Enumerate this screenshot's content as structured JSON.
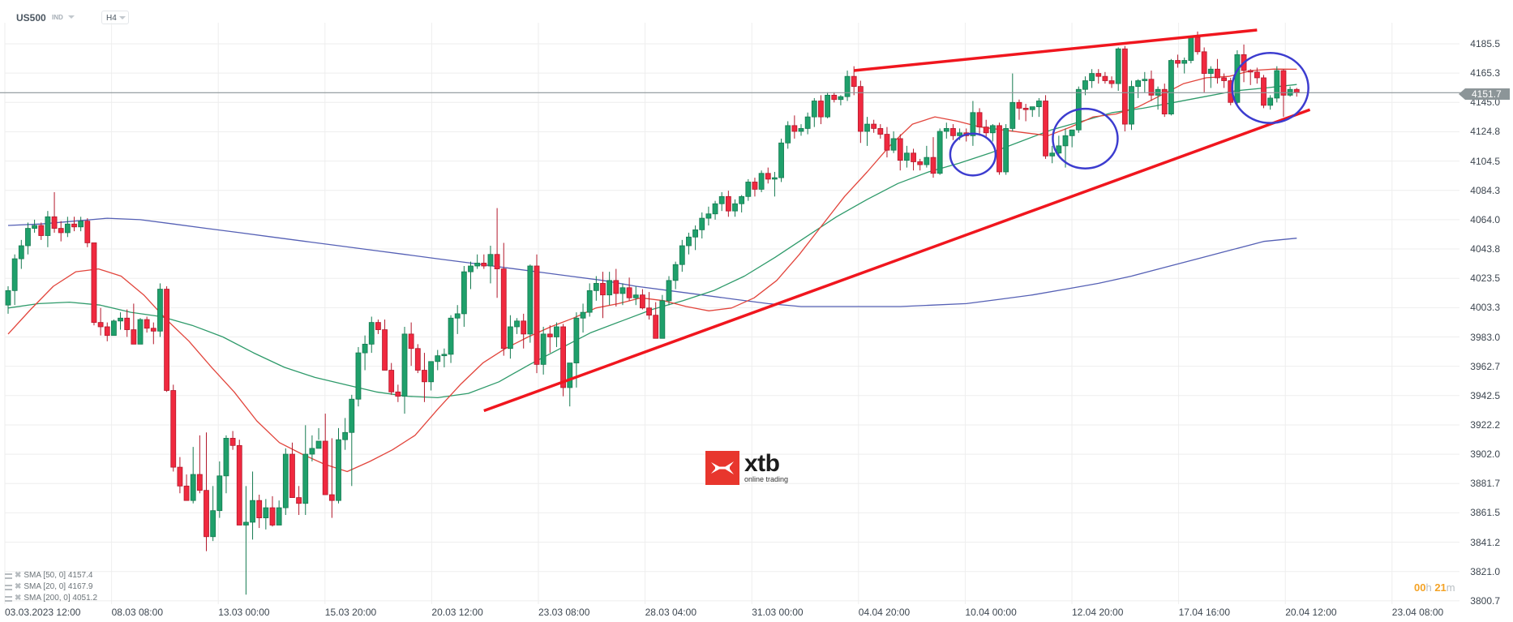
{
  "header": {
    "symbol": "US500",
    "symbol_type": "IND",
    "timeframe": "H4"
  },
  "price_axis": {
    "labels": [
      "4185.5",
      "4165.3",
      "4145.0",
      "4124.8",
      "4104.5",
      "4084.3",
      "4064.0",
      "4043.8",
      "4023.5",
      "4003.3",
      "3983.0",
      "3962.7",
      "3942.5",
      "3922.2",
      "3902.0",
      "3881.7",
      "3861.5",
      "3841.2",
      "3821.0",
      "3800.7"
    ],
    "current_price": "4151.7"
  },
  "time_axis": {
    "labels": [
      "03.03.2023  12:00",
      "08.03  08:00",
      "13.03  00:00",
      "15.03  20:00",
      "20.03  12:00",
      "23.03  08:00",
      "28.03  04:00",
      "31.03  00:00",
      "04.04  20:00",
      "10.04  00:00",
      "12.04  20:00",
      "17.04  16:00",
      "20.04  12:00",
      "23.04  08:00"
    ]
  },
  "legend": [
    {
      "label": "SMA [50,  0] 4157.4"
    },
    {
      "label": "SMA [20,  0] 4167.9"
    },
    {
      "label": "SMA [200,  0] 4051.2"
    }
  ],
  "countdown": {
    "hours": "00",
    "h_unit": "h",
    "minutes": "21",
    "m_unit": "m"
  },
  "logo": {
    "name": "xtb",
    "tagline": "online trading"
  },
  "colors": {
    "bull": "#1fa06b",
    "bear": "#f0293f",
    "sma20": "#e2453c",
    "sma50": "#2e9a6a",
    "sma200": "#5560b5",
    "trendline": "#f0161e",
    "circle": "#3c3ccf",
    "grid": "#eeeeee",
    "current_price_line": "#8c9598"
  },
  "chart_data": {
    "type": "candlestick",
    "title": "US500 H4",
    "xlabel": "",
    "ylabel": "",
    "ylim": [
      3800.7,
      4195
    ],
    "grid": true,
    "legend_position": "bottom-left",
    "current_price": 4151.7,
    "candles_ohlc": [
      [
        4005,
        4018,
        3999,
        4015
      ],
      [
        4015,
        4040,
        4005,
        4037
      ],
      [
        4037,
        4050,
        4030,
        4046
      ],
      [
        4046,
        4062,
        4040,
        4058
      ],
      [
        4058,
        4064,
        4055,
        4060
      ],
      [
        4060,
        4062,
        4050,
        4053
      ],
      [
        4053,
        4070,
        4045,
        4066
      ],
      [
        4066,
        4083,
        4055,
        4058
      ],
      [
        4058,
        4063,
        4049,
        4055
      ],
      [
        4055,
        4066,
        4052,
        4061
      ],
      [
        4061,
        4066,
        4056,
        4059
      ],
      [
        4059,
        4066,
        4056,
        4063
      ],
      [
        4063,
        4065,
        4045,
        4048
      ],
      [
        4048,
        4048,
        3991,
        3993
      ],
      [
        3993,
        4003,
        3984,
        3990
      ],
      [
        3990,
        3993,
        3980,
        3984
      ],
      [
        3984,
        3995,
        3984,
        3994
      ],
      [
        3994,
        4000,
        3988,
        3996
      ],
      [
        3996,
        4002,
        3983,
        3988
      ],
      [
        3988,
        4006,
        3980,
        3978
      ],
      [
        3978,
        3996,
        3980,
        3995
      ],
      [
        3995,
        3997,
        3986,
        3989
      ],
      [
        3989,
        3993,
        3978,
        3987
      ],
      [
        3987,
        4020,
        3983,
        4016
      ],
      [
        4016,
        4018,
        3945,
        3946
      ],
      [
        3946,
        3950,
        3890,
        3893
      ],
      [
        3893,
        3900,
        3875,
        3880
      ],
      [
        3880,
        3888,
        3870,
        3870
      ],
      [
        3870,
        3907,
        3868,
        3888
      ],
      [
        3888,
        3915,
        3875,
        3877
      ],
      [
        3877,
        3917,
        3835,
        3845
      ],
      [
        3845,
        3880,
        3842,
        3863
      ],
      [
        3863,
        3897,
        3858,
        3887
      ],
      [
        3887,
        3915,
        3875,
        3913
      ],
      [
        3913,
        3918,
        3905,
        3908
      ],
      [
        3908,
        3912,
        3854,
        3853
      ],
      [
        3853,
        3880,
        3805,
        3855
      ],
      [
        3855,
        3890,
        3843,
        3870
      ],
      [
        3870,
        3874,
        3851,
        3858
      ],
      [
        3858,
        3871,
        3850,
        3865
      ],
      [
        3865,
        3873,
        3852,
        3853
      ],
      [
        3853,
        3870,
        3853,
        3865
      ],
      [
        3865,
        3906,
        3860,
        3902
      ],
      [
        3902,
        3910,
        3882,
        3872
      ],
      [
        3872,
        3880,
        3860,
        3868
      ],
      [
        3868,
        3922,
        3860,
        3902
      ],
      [
        3902,
        3915,
        3897,
        3906
      ],
      [
        3906,
        3920,
        3912,
        3911
      ],
      [
        3911,
        3930,
        3880,
        3874
      ],
      [
        3874,
        3913,
        3858,
        3870
      ],
      [
        3870,
        3920,
        3868,
        3912
      ],
      [
        3912,
        3927,
        3905,
        3917
      ],
      [
        3917,
        3943,
        3880,
        3940
      ],
      [
        3940,
        3976,
        3935,
        3972
      ],
      [
        3972,
        3984,
        3960,
        3978
      ],
      [
        3978,
        3997,
        3972,
        3993
      ],
      [
        3993,
        3995,
        3985,
        3988
      ],
      [
        3988,
        3995,
        3960,
        3960
      ],
      [
        3960,
        3965,
        3943,
        3945
      ],
      [
        3945,
        3950,
        3938,
        3942
      ],
      [
        3942,
        3990,
        3930,
        3985
      ],
      [
        3985,
        3993,
        3963,
        3975
      ],
      [
        3975,
        3978,
        3958,
        3960
      ],
      [
        3960,
        3972,
        3938,
        3952
      ],
      [
        3952,
        3966,
        3946,
        3966
      ],
      [
        3966,
        3974,
        3960,
        3970
      ],
      [
        3970,
        3975,
        3962,
        3971
      ],
      [
        3971,
        3998,
        3965,
        3996
      ],
      [
        3996,
        4005,
        3985,
        3999
      ],
      [
        3999,
        4032,
        3990,
        4028
      ],
      [
        4028,
        4035,
        4016,
        4032
      ],
      [
        4032,
        4040,
        4030,
        4034
      ],
      [
        4034,
        4040,
        4030,
        4032
      ],
      [
        4032,
        4046,
        4020,
        4040
      ],
      [
        4040,
        4072,
        4010,
        4030
      ],
      [
        4030,
        4048,
        3970,
        3975
      ],
      [
        3975,
        3998,
        3968,
        3990
      ],
      [
        3990,
        3996,
        3985,
        3994
      ],
      [
        3994,
        3999,
        3975,
        3985
      ],
      [
        3985,
        4033,
        3979,
        4032
      ],
      [
        4032,
        4040,
        3958,
        3964
      ],
      [
        3964,
        3990,
        3957,
        3985
      ],
      [
        3985,
        3991,
        3972,
        3983
      ],
      [
        3983,
        3993,
        3976,
        3990
      ],
      [
        3990,
        3992,
        3942,
        3948
      ],
      [
        3948,
        3955,
        3935,
        3965
      ],
      [
        3965,
        4000,
        3948,
        3996
      ],
      [
        3996,
        4006,
        3986,
        4000
      ],
      [
        4000,
        4020,
        3997,
        4015
      ],
      [
        4015,
        4025,
        4008,
        4020
      ],
      [
        4020,
        4028,
        3996,
        4012
      ],
      [
        4012,
        4028,
        4005,
        4022
      ],
      [
        4022,
        4030,
        4004,
        4013
      ],
      [
        4013,
        4020,
        4005,
        4017
      ],
      [
        4017,
        4024,
        4008,
        4010
      ],
      [
        4010,
        4018,
        4005,
        4012
      ],
      [
        4012,
        4016,
        4002,
        4003
      ],
      [
        4003,
        4014,
        3995,
        3998
      ],
      [
        3998,
        4007,
        3990,
        3982
      ],
      [
        3982,
        4012,
        3982,
        4008
      ],
      [
        4008,
        4025,
        4005,
        4022
      ],
      [
        4022,
        4035,
        4016,
        4033
      ],
      [
        4033,
        4050,
        4028,
        4046
      ],
      [
        4046,
        4055,
        4040,
        4052
      ],
      [
        4052,
        4060,
        4043,
        4057
      ],
      [
        4057,
        4069,
        4051,
        4065
      ],
      [
        4065,
        4073,
        4060,
        4068
      ],
      [
        4068,
        4077,
        4064,
        4075
      ],
      [
        4075,
        4083,
        4070,
        4080
      ],
      [
        4080,
        4084,
        4066,
        4070
      ],
      [
        4070,
        4078,
        4066,
        4075
      ],
      [
        4075,
        4081,
        4069,
        4080
      ],
      [
        4080,
        4092,
        4077,
        4090
      ],
      [
        4090,
        4093,
        4080,
        4085
      ],
      [
        4085,
        4098,
        4083,
        4096
      ],
      [
        4096,
        4100,
        4089,
        4092
      ],
      [
        4092,
        4097,
        4080,
        4093
      ],
      [
        4093,
        4120,
        4090,
        4117
      ],
      [
        4117,
        4132,
        4113,
        4129
      ],
      [
        4129,
        4136,
        4120,
        4125
      ],
      [
        4125,
        4130,
        4122,
        4127
      ],
      [
        4127,
        4138,
        4123,
        4135
      ],
      [
        4135,
        4148,
        4128,
        4146
      ],
      [
        4146,
        4150,
        4130,
        4135
      ],
      [
        4135,
        4152,
        4134,
        4150
      ],
      [
        4150,
        4152,
        4145,
        4147
      ],
      [
        4147,
        4150,
        4143,
        4149
      ],
      [
        4149,
        4167,
        4146,
        4163
      ],
      [
        4163,
        4170,
        4150,
        4156
      ],
      [
        4156,
        4160,
        4117,
        4125
      ],
      [
        4125,
        4135,
        4115,
        4130
      ],
      [
        4130,
        4133,
        4124,
        4127
      ],
      [
        4127,
        4130,
        4120,
        4123
      ],
      [
        4123,
        4128,
        4107,
        4112
      ],
      [
        4112,
        4125,
        4110,
        4120
      ],
      [
        4120,
        4123,
        4098,
        4105
      ],
      [
        4105,
        4115,
        4100,
        4110
      ],
      [
        4110,
        4113,
        4098,
        4104
      ],
      [
        4104,
        4106,
        4098,
        4102
      ],
      [
        4102,
        4115,
        4100,
        4107
      ],
      [
        4107,
        4121,
        4093,
        4096
      ],
      [
        4096,
        4127,
        4095,
        4125
      ],
      [
        4125,
        4131,
        4120,
        4127
      ],
      [
        4127,
        4130,
        4119,
        4122
      ],
      [
        4122,
        4127,
        4119,
        4124
      ],
      [
        4124,
        4127,
        4118,
        4122
      ],
      [
        4122,
        4146,
        4115,
        4138
      ],
      [
        4138,
        4141,
        4122,
        4128
      ],
      [
        4128,
        4133,
        4121,
        4124
      ],
      [
        4124,
        4130,
        4118,
        4129
      ],
      [
        4129,
        4131,
        4095,
        4097
      ],
      [
        4097,
        4130,
        4095,
        4127
      ],
      [
        4127,
        4165,
        4125,
        4145
      ],
      [
        4145,
        4147,
        4133,
        4141
      ],
      [
        4141,
        4144,
        4132,
        4140
      ],
      [
        4140,
        4142,
        4135,
        4142
      ],
      [
        4142,
        4148,
        4135,
        4146
      ],
      [
        4146,
        4150,
        4106,
        4108
      ],
      [
        4108,
        4115,
        4103,
        4110
      ],
      [
        4110,
        4122,
        4108,
        4115
      ],
      [
        4115,
        4127,
        4100,
        4122
      ],
      [
        4122,
        4126,
        4114,
        4126
      ],
      [
        4126,
        4156,
        4124,
        4154
      ],
      [
        4154,
        4163,
        4150,
        4160
      ],
      [
        4160,
        4168,
        4155,
        4165
      ],
      [
        4165,
        4168,
        4158,
        4163
      ],
      [
        4163,
        4166,
        4158,
        4160
      ],
      [
        4160,
        4163,
        4155,
        4158
      ],
      [
        4158,
        4183,
        4153,
        4182
      ],
      [
        4182,
        4184,
        4125,
        4130
      ],
      [
        4130,
        4160,
        4126,
        4156
      ],
      [
        4156,
        4161,
        4148,
        4160
      ],
      [
        4160,
        4166,
        4152,
        4161
      ],
      [
        4161,
        4167,
        4146,
        4150
      ],
      [
        4150,
        4156,
        4140,
        4154
      ],
      [
        4154,
        4158,
        4135,
        4137
      ],
      [
        4137,
        4175,
        4136,
        4174
      ],
      [
        4174,
        4178,
        4169,
        4172
      ],
      [
        4172,
        4176,
        4165,
        4174
      ],
      [
        4174,
        4191,
        4172,
        4190
      ],
      [
        4190,
        4194,
        4178,
        4180
      ],
      [
        4180,
        4183,
        4152,
        4165
      ],
      [
        4165,
        4170,
        4155,
        4168
      ],
      [
        4168,
        4175,
        4158,
        4162
      ],
      [
        4162,
        4165,
        4155,
        4160
      ],
      [
        4160,
        4162,
        4143,
        4145
      ],
      [
        4145,
        4181,
        4143,
        4178
      ],
      [
        4178,
        4185,
        4159,
        4167
      ],
      [
        4167,
        4168,
        4157,
        4166
      ],
      [
        4166,
        4169,
        4158,
        4162
      ],
      [
        4162,
        4164,
        4141,
        4143
      ],
      [
        4143,
        4150,
        4140,
        4148
      ],
      [
        4148,
        4170,
        4145,
        4167
      ],
      [
        4167,
        4168,
        4135,
        4150
      ],
      [
        4150,
        4156,
        4149,
        4154
      ],
      [
        4154,
        4155,
        4149,
        4151.7
      ]
    ],
    "sma20_approx": [
      3985,
      4002,
      4018,
      4028,
      4030,
      4025,
      4012,
      3995,
      3980,
      3962,
      3945,
      3925,
      3910,
      3902,
      3895,
      3890,
      3897,
      3905,
      3915,
      3933,
      3950,
      3965,
      3975,
      3983,
      3990,
      3996,
      4003,
      4006,
      4010,
      4008,
      4004,
      4001,
      4003,
      4010,
      4022,
      4040,
      4060,
      4080,
      4097,
      4115,
      4130,
      4135,
      4132,
      4128,
      4126,
      4124,
      4122,
      4128,
      4135,
      4137,
      4142,
      4150,
      4158,
      4162,
      4163,
      4167,
      4168,
      4167.9
    ],
    "sma50_approx": [
      4003,
      4006,
      4007,
      4005,
      4000,
      3997,
      3991,
      3983,
      3972,
      3962,
      3955,
      3950,
      3945,
      3942,
      3941,
      3944,
      3952,
      3964,
      3975,
      3986,
      3994,
      4002,
      4008,
      4015,
      4025,
      4038,
      4052,
      4066,
      4078,
      4089,
      4097,
      4103,
      4110,
      4118,
      4126,
      4132,
      4138,
      4141,
      4145,
      4149,
      4153,
      4155,
      4157.4
    ],
    "sma200_approx": [
      4060,
      4061,
      4063,
      4065,
      4064,
      4061,
      4058,
      4055,
      4052,
      4049,
      4046,
      4043,
      4040,
      4037,
      4034,
      4031,
      4028,
      4025,
      4022,
      4018,
      4015,
      4012,
      4009,
      4006,
      4004,
      4004,
      4004,
      4004,
      4005,
      4006,
      4009,
      4012,
      4016,
      4020,
      4025,
      4031,
      4037,
      4043,
      4049,
      4051.2
    ],
    "trendlines": [
      {
        "name": "lower-support",
        "from": {
          "x_index": 72,
          "price": 3932
        },
        "to": {
          "x_index": 197,
          "price": 4140
        }
      },
      {
        "name": "upper-resistance",
        "from": {
          "x_index": 128,
          "price": 4167
        },
        "to": {
          "x_index": 189,
          "price": 4195
        }
      }
    ],
    "annotations": [
      {
        "type": "circle",
        "center_index": 146,
        "price": 4109
      },
      {
        "type": "circle",
        "center_index": 163,
        "price": 4120
      },
      {
        "type": "circle",
        "center_index": 191,
        "price": 4155
      }
    ]
  }
}
